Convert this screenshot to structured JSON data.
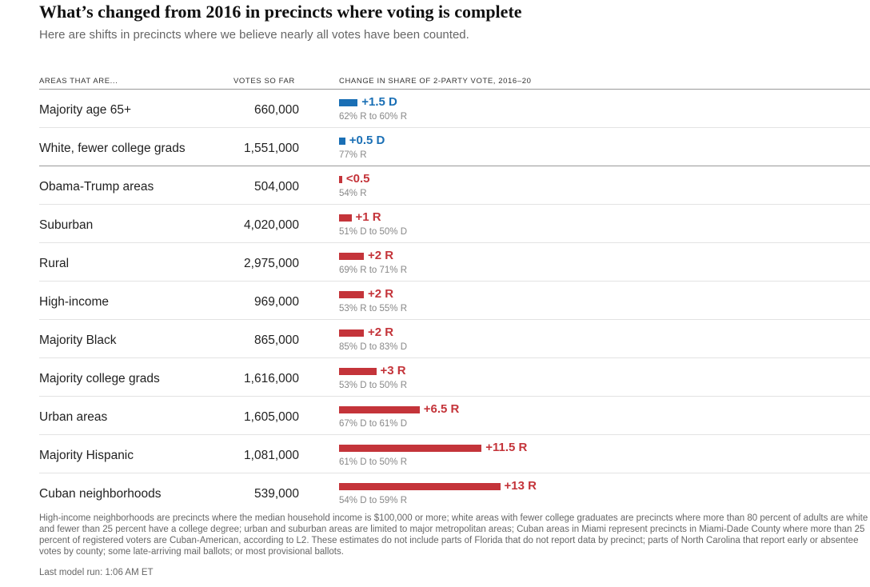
{
  "title": "What’s changed from 2016 in precincts where voting is complete",
  "subtitle": "Here are shifts in precincts where we believe nearly all votes have been counted.",
  "columns": {
    "areas": "AREAS THAT ARE...",
    "votes": "VOTES SO FAR",
    "change": "CHANGE IN SHARE OF 2-PARTY VOTE, 2016–20"
  },
  "colors": {
    "dem": "#1a6fb5",
    "rep": "#c4343a"
  },
  "chart_data": {
    "type": "bar",
    "orientation": "horizontal",
    "categories": [
      "Majority age 65+",
      "White, fewer college grads",
      "Obama-Trump areas",
      "Suburban",
      "Rural",
      "High-income",
      "Majority Black",
      "Majority college grads",
      "Urban areas",
      "Majority Hispanic",
      "Cuban neighborhoods"
    ],
    "votes_so_far": [
      "660,000",
      "1,551,000",
      "504,000",
      "4,020,000",
      "2,975,000",
      "969,000",
      "865,000",
      "1,616,000",
      "1,605,000",
      "1,081,000",
      "539,000"
    ],
    "series": [
      {
        "values": [
          1.5,
          0.5,
          0.25,
          1,
          2,
          2,
          2,
          3,
          6.5,
          11.5,
          13
        ],
        "party": [
          "D",
          "D",
          "R",
          "R",
          "R",
          "R",
          "R",
          "R",
          "R",
          "R",
          "R"
        ]
      }
    ],
    "change_labels": [
      "+1.5 D",
      "+0.5 D",
      "<0.5",
      "+1 R",
      "+2 R",
      "+2 R",
      "+2 R",
      "+3 R",
      "+6.5 R",
      "+11.5 R",
      "+13 R"
    ],
    "share_labels": [
      "62% R to 60% R",
      "77% R",
      "54% R",
      "51% D to 50% D",
      "69% R to 71% R",
      "53% R to 55% R",
      "85% D to 83% D",
      "53% D to 50% R",
      "67% D to 61% D",
      "61% D to 50% R",
      "54% D to 59% R"
    ]
  },
  "footnote": "High-income neighborhoods are precincts where the median household income is $100,000 or more; white areas with fewer college graduates are precincts where more than 80 percent of adults are white and fewer than 25 percent have a college degree; urban and suburban areas are limited to major metropolitan areas; Cuban areas in Miami represent precincts in Miami-Dade County where more than 25 percent of registered voters are Cuban-American, according to L2. These estimates do not include parts of Florida that do not report data by precinct; parts of North Carolina that report early or absentee votes by county; some late-arriving mail ballots; or most provisional ballots.",
  "last_run": "Last model run: 1:06 AM ET"
}
